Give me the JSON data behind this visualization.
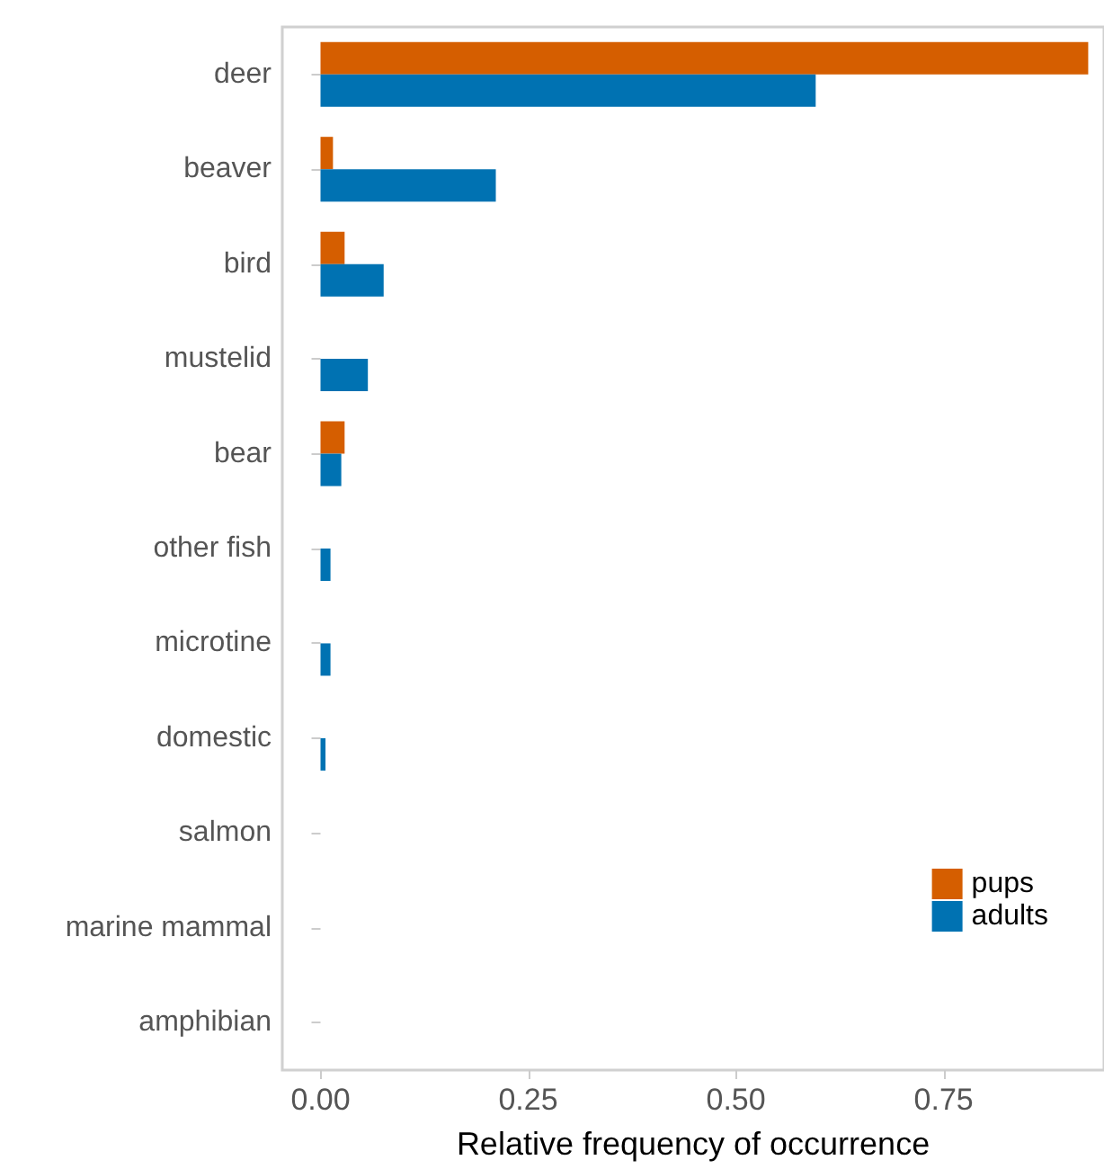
{
  "chart_data": {
    "type": "bar",
    "orientation": "horizontal",
    "xlabel": "Relative frequency of occurrence",
    "categories": [
      "deer",
      "beaver",
      "bird",
      "mustelid",
      "bear",
      "other fish",
      "microtine",
      "domestic",
      "salmon",
      "marine mammal",
      "amphibian"
    ],
    "series": [
      {
        "name": "pups",
        "color": "#d55e00",
        "values": [
          0.924,
          0.015,
          0.029,
          0,
          0.029,
          0,
          0,
          0,
          0,
          0,
          0
        ]
      },
      {
        "name": "adults",
        "color": "#0072b2",
        "values": [
          0.596,
          0.211,
          0.076,
          0.057,
          0.025,
          0.012,
          0.012,
          0.006,
          0,
          0,
          0
        ]
      }
    ],
    "xlim": [
      -0.046,
      0.943
    ],
    "xticks": [
      {
        "value": 0,
        "label": "0.00"
      },
      {
        "value": 0.25,
        "label": "0.25"
      },
      {
        "value": 0.5,
        "label": "0.50"
      },
      {
        "value": 0.75,
        "label": "0.75"
      }
    ],
    "grid": false,
    "legend": "bottom right"
  }
}
